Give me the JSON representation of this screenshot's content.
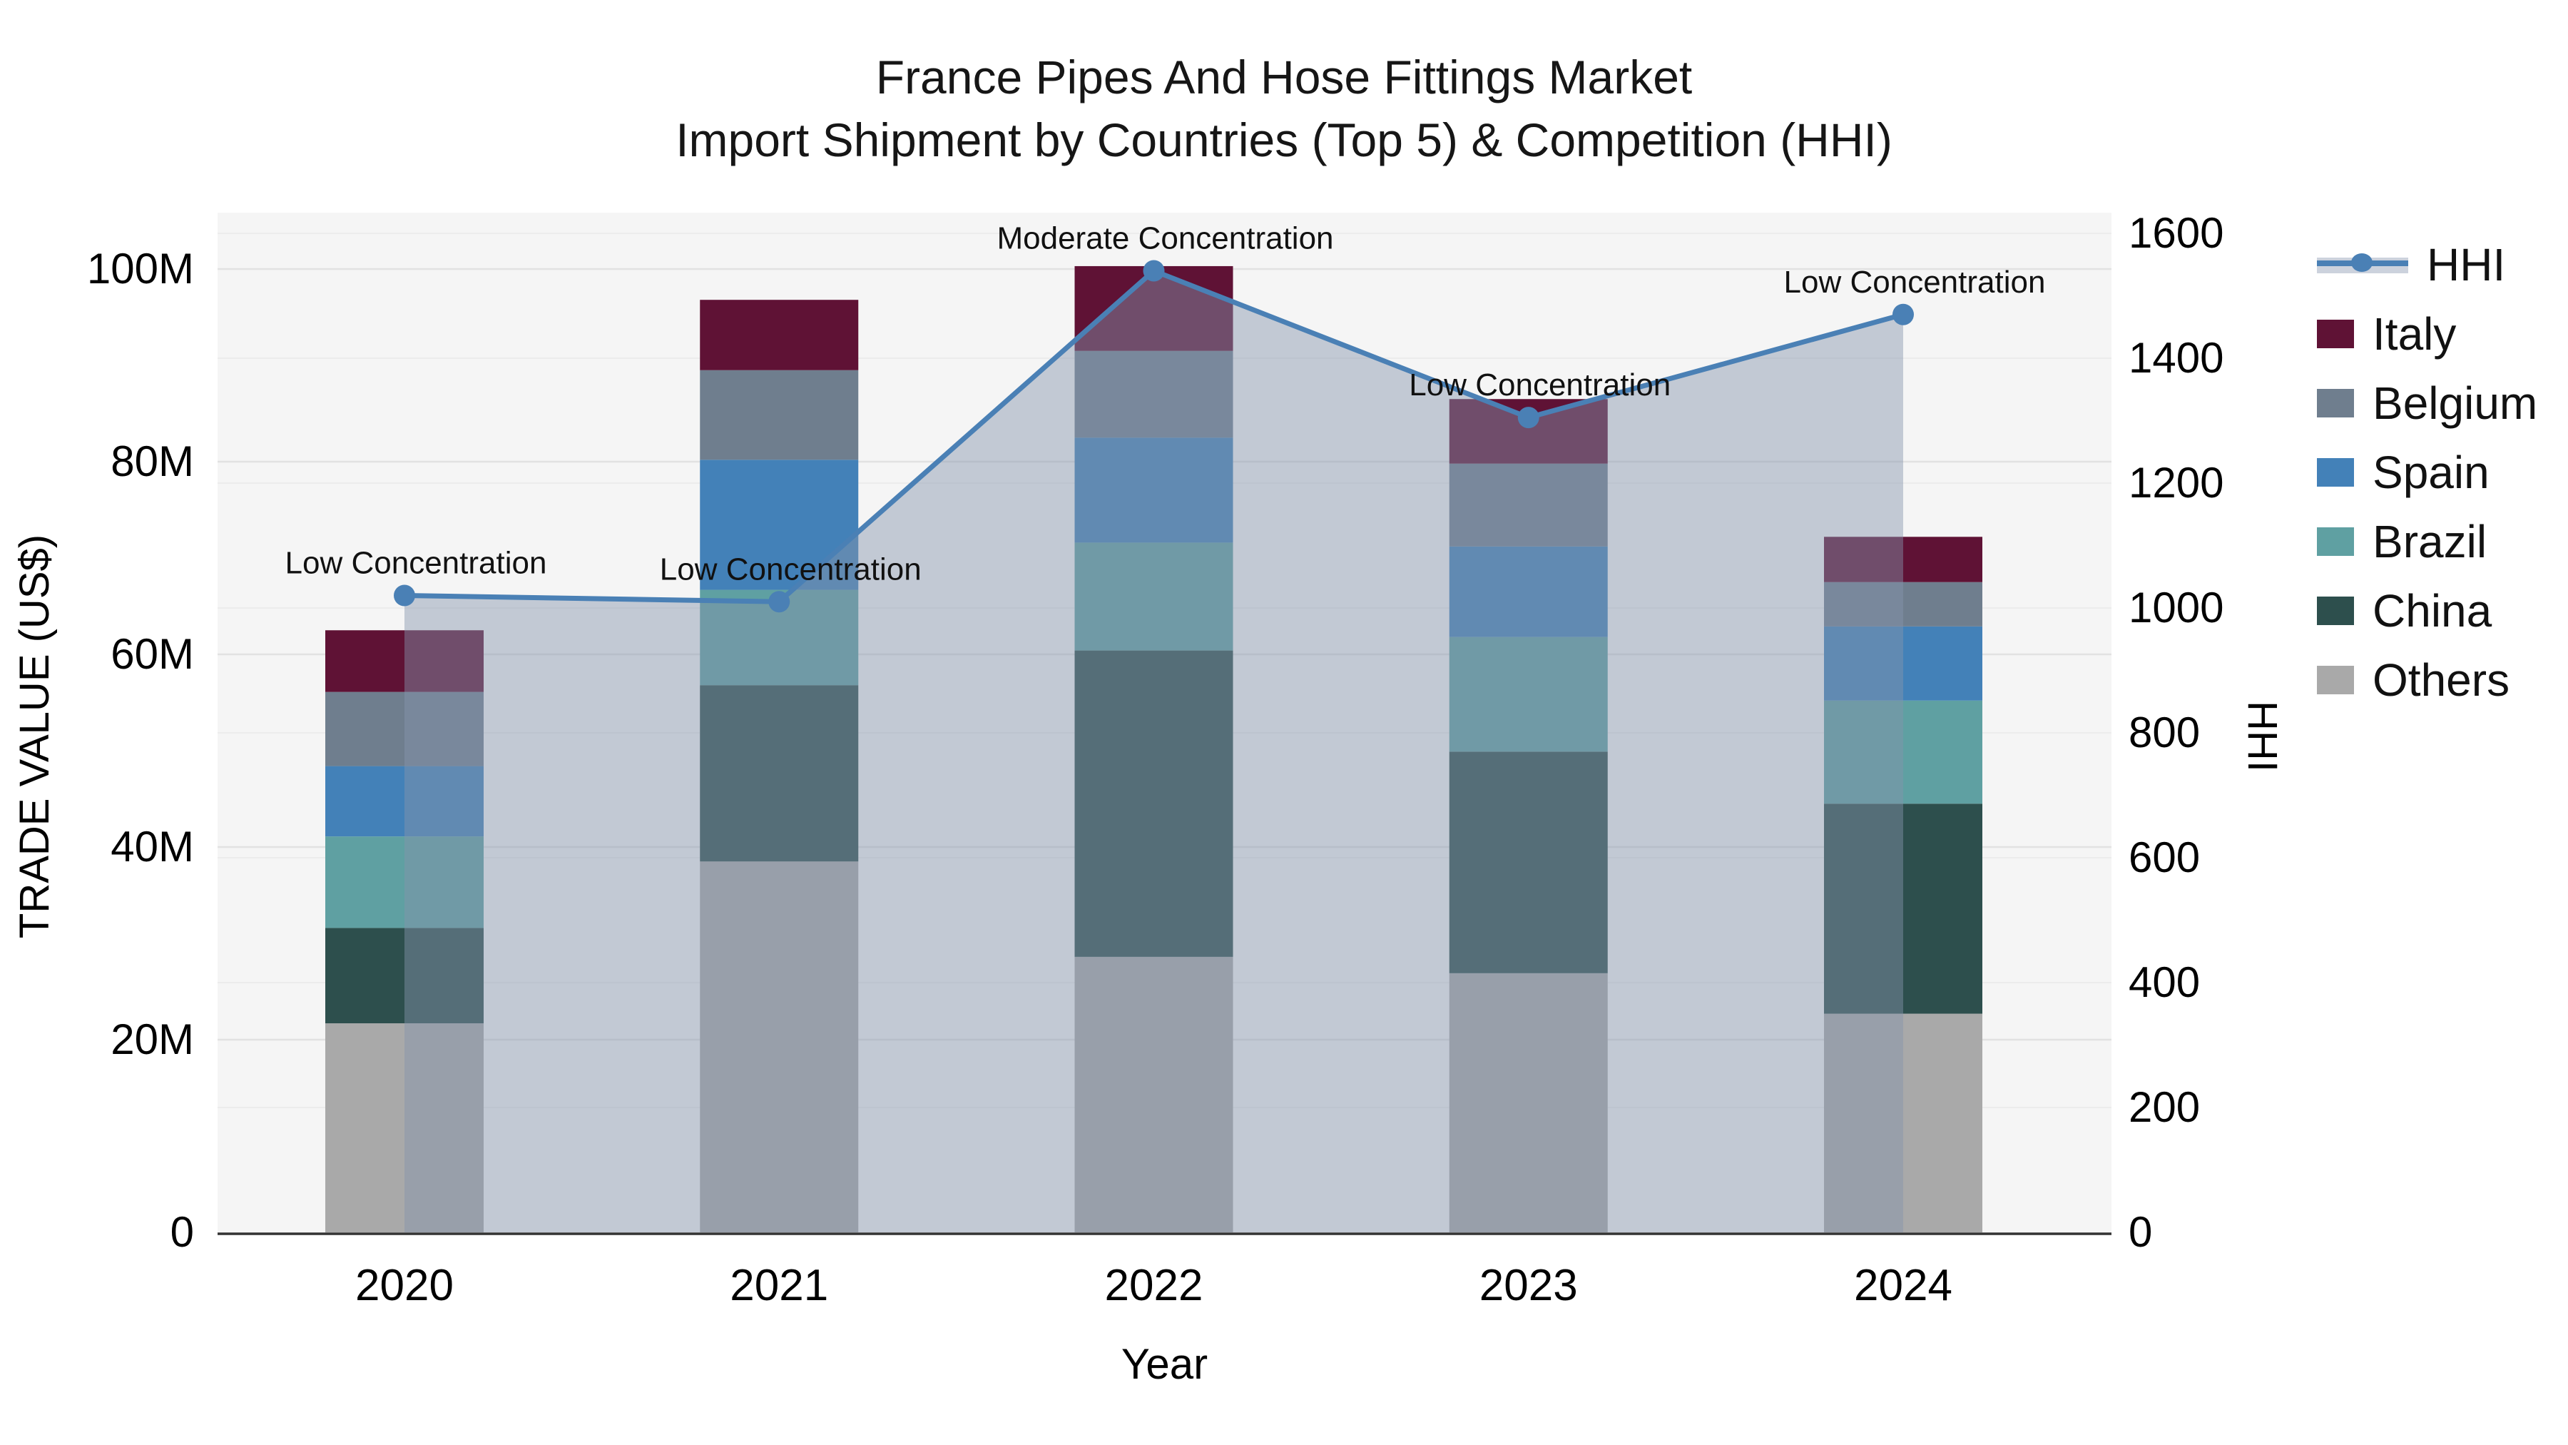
{
  "title": {
    "line1": "France Pipes And Hose Fittings Market",
    "line2": "Import Shipment by Countries (Top 5) & Competition (HHI)"
  },
  "chart_data": {
    "type": "combo-stacked-bar-line",
    "categories": [
      "2020",
      "2021",
      "2022",
      "2023",
      "2024"
    ],
    "xlabel": "Year",
    "series": [
      {
        "name": "Others",
        "color": "#a9a9a9",
        "values": [
          21.7,
          38.5,
          28.6,
          26.9,
          22.7
        ]
      },
      {
        "name": "China",
        "color": "#2d4f4d",
        "values": [
          9.9,
          18.3,
          31.8,
          23.0,
          21.8
        ]
      },
      {
        "name": "Brazil",
        "color": "#5fa0a2",
        "values": [
          9.5,
          9.9,
          11.2,
          11.9,
          10.7
        ]
      },
      {
        "name": "Spain",
        "color": "#4381b8",
        "values": [
          7.3,
          13.5,
          10.9,
          9.4,
          7.7
        ]
      },
      {
        "name": "Belgium",
        "color": "#6f7e8e",
        "values": [
          7.7,
          9.3,
          9.0,
          8.6,
          4.6
        ]
      },
      {
        "name": "Italy",
        "color": "#5f1235",
        "values": [
          6.4,
          7.3,
          8.8,
          6.7,
          4.7
        ]
      }
    ],
    "bar_totals": [
      62.5,
      96.8,
      100.3,
      86.5,
      72.2
    ],
    "line_series": {
      "name": "HHI",
      "color": "#4a80b5",
      "area_fill": "rgba(133,148,173,0.46)",
      "values": [
        1020,
        1010,
        1540,
        1305,
        1470
      ],
      "annotations": [
        "Low Concentration",
        "Low Concentration",
        "Moderate Concentration",
        "Low Concentration",
        "Low Concentration"
      ]
    },
    "y_left": {
      "title": "TRADE VALUE (US$)",
      "ticks": [
        {
          "label": "0",
          "value": 0
        },
        {
          "label": "20M",
          "value": 20
        },
        {
          "label": "40M",
          "value": 40
        },
        {
          "label": "60M",
          "value": 60
        },
        {
          "label": "80M",
          "value": 80
        },
        {
          "label": "100M",
          "value": 100
        }
      ],
      "lim": [
        0,
        100
      ]
    },
    "y_right": {
      "title": "HHI",
      "ticks": [
        {
          "label": "0",
          "value": 0
        },
        {
          "label": "200",
          "value": 200
        },
        {
          "label": "400",
          "value": 400
        },
        {
          "label": "600",
          "value": 600
        },
        {
          "label": "800",
          "value": 800
        },
        {
          "label": "1000",
          "value": 1000
        },
        {
          "label": "1200",
          "value": 1200
        },
        {
          "label": "1400",
          "value": 1400
        },
        {
          "label": "1600",
          "value": 1600
        }
      ],
      "lim": [
        0,
        1600
      ]
    },
    "grid": true,
    "legend_position": "right"
  },
  "legend": {
    "items": [
      {
        "label": "HHI",
        "color": "#4a80b5",
        "type": "line"
      },
      {
        "label": "Italy",
        "color": "#5f1235",
        "type": "box"
      },
      {
        "label": "Belgium",
        "color": "#6f7e8e",
        "type": "box"
      },
      {
        "label": "Spain",
        "color": "#4381b8",
        "type": "box"
      },
      {
        "label": "Brazil",
        "color": "#5fa0a2",
        "type": "box"
      },
      {
        "label": "China",
        "color": "#2d4f4d",
        "type": "box"
      },
      {
        "label": "Others",
        "color": "#a9a9a9",
        "type": "box"
      }
    ]
  },
  "colors": {
    "plot_bg": "#f5f5f5",
    "grid_major": "#e2e2e2",
    "grid_minor": "#ececec",
    "axis_line": "#333333",
    "text": "#161616"
  }
}
